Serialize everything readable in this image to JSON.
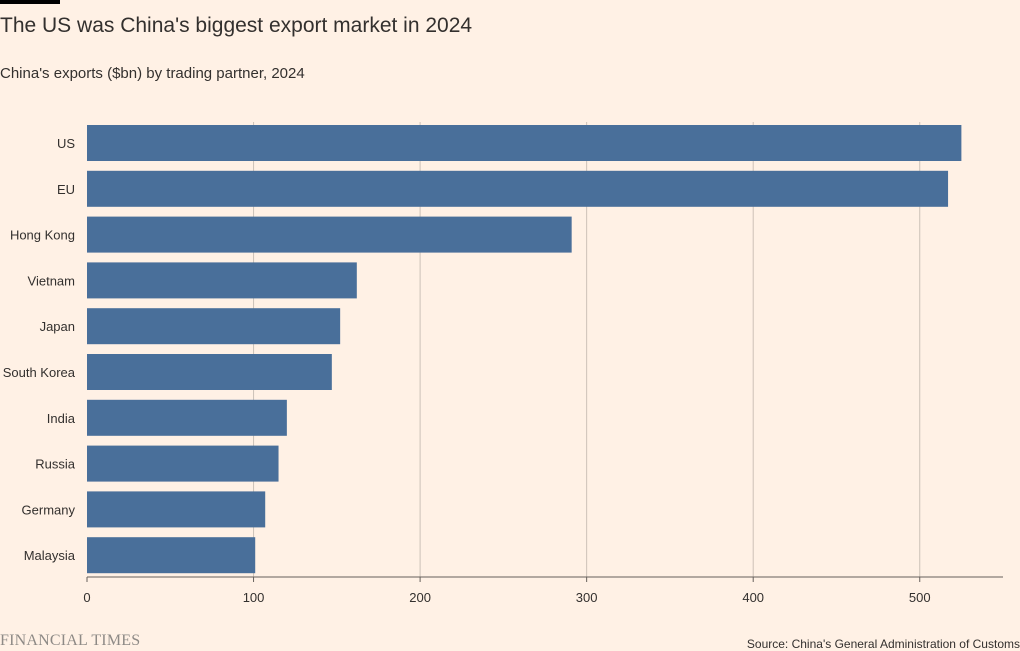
{
  "header": {
    "title": "The US was China's biggest export market in 2024",
    "subtitle": "China's exports ($bn) by trading partner, 2024"
  },
  "footer": {
    "logo_text": "FINANCIAL TIMES",
    "source": "Source: China's General Administration of Customs"
  },
  "colors": {
    "background": "#FFF1E5",
    "bar": "#496F9A",
    "grid": "#CCC1B7",
    "axis": "#66605C",
    "text": "#33302E"
  },
  "chart_data": {
    "type": "bar",
    "orientation": "horizontal",
    "title": "The US was China's biggest export market in 2024",
    "subtitle": "China's exports ($bn) by trading partner, 2024",
    "xlabel": "",
    "ylabel": "",
    "categories": [
      "US",
      "EU",
      "Hong Kong",
      "Vietnam",
      "Japan",
      "South Korea",
      "India",
      "Russia",
      "Germany",
      "Malaysia"
    ],
    "values": [
      525,
      517,
      291,
      162,
      152,
      147,
      120,
      115,
      107,
      101
    ],
    "xlim": [
      0,
      550
    ],
    "xticks": [
      0,
      100,
      200,
      300,
      400,
      500
    ],
    "grid": true,
    "legend": "none"
  }
}
